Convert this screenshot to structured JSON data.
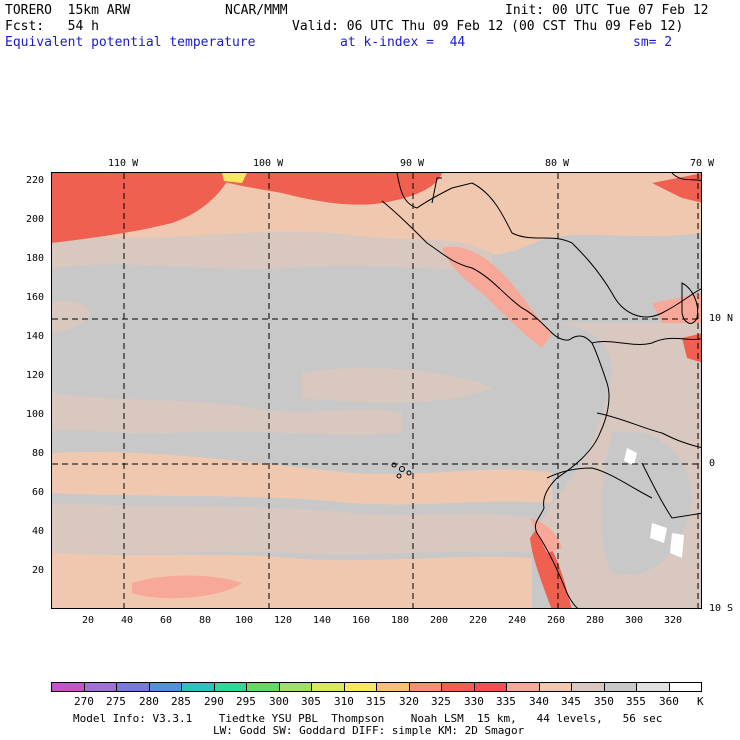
{
  "header": {
    "model": "TORERO  15km ARW",
    "org": "NCAR/MMM",
    "init": "Init: 00 UTC Tue 07 Feb 12",
    "fcst": "Fcst:   54 h",
    "valid": "Valid: 06 UTC Thu 09 Feb 12 (00 CST Thu 09 Feb 12)",
    "field": "Equivalent potential temperature",
    "level": "at k-index =  44",
    "smooth": "sm= 2"
  },
  "top_longitudes": [
    "110 W",
    "100 W",
    "90 W",
    "80 W",
    "70 W"
  ],
  "right_latitudes": [
    "10 N",
    "0",
    "10 S"
  ],
  "y_grid_labels": [
    "220",
    "200",
    "180",
    "160",
    "140",
    "120",
    "100",
    "80",
    "60",
    "40",
    "20"
  ],
  "x_grid_labels": [
    "20",
    "40",
    "60",
    "80",
    "100",
    "120",
    "140",
    "160",
    "180",
    "200",
    "220",
    "240",
    "260",
    "280",
    "300",
    "320"
  ],
  "colorbar": {
    "levels": [
      "270",
      "275",
      "280",
      "285",
      "290",
      "295",
      "300",
      "305",
      "310",
      "315",
      "320",
      "325",
      "330",
      "335",
      "340",
      "345",
      "350",
      "355",
      "360"
    ],
    "unit": "K",
    "colors": [
      "#c850c8",
      "#a070d8",
      "#7878e0",
      "#5090e0",
      "#30c0c0",
      "#30d898",
      "#60dc60",
      "#a0e060",
      "#d8e860",
      "#f8e860",
      "#f8c070",
      "#f89070",
      "#f06050",
      "#f05050",
      "#f8a898",
      "#f0c8b0",
      "#d8c8c0",
      "#c8c8c8",
      "#e0e0e0",
      "#ffffff"
    ]
  },
  "footer": {
    "line1": "Model Info: V3.3.1    Tiedtke YSU PBL  Thompson    Noah LSM  15 km,   44 levels,   56 sec",
    "line2": "LW: Godd SW: Goddard DIFF: simple KM: 2D Smagor"
  }
}
